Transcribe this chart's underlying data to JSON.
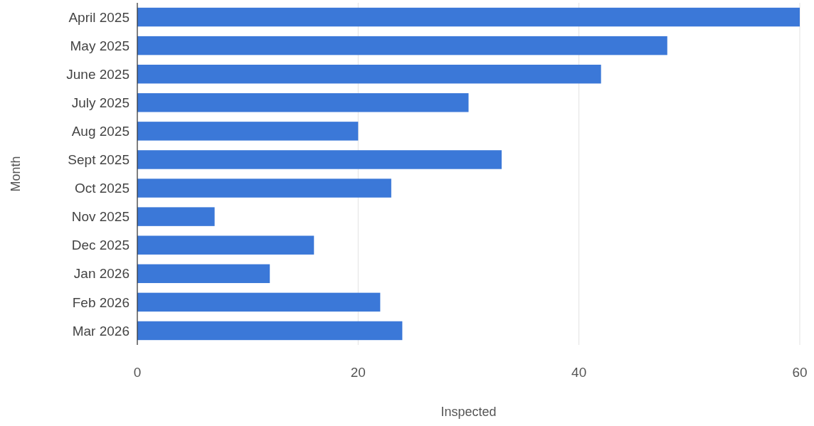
{
  "chart_data": {
    "type": "bar",
    "orientation": "horizontal",
    "xlabel": "Inspected",
    "ylabel": "Month",
    "categories": [
      "April 2025",
      "May 2025",
      "June 2025",
      "July 2025",
      "Aug 2025",
      "Sept 2025",
      "Oct 2025",
      "Nov 2025",
      "Dec 2025",
      "Jan 2026",
      "Feb 2026",
      "Mar 2026"
    ],
    "values": [
      60,
      48,
      42,
      30,
      20,
      33,
      23,
      7,
      16,
      12,
      22,
      24
    ],
    "color": "#3b78d8",
    "xlim": [
      0,
      60
    ],
    "xticks": [
      0,
      20,
      40,
      60
    ],
    "grid": "x"
  }
}
